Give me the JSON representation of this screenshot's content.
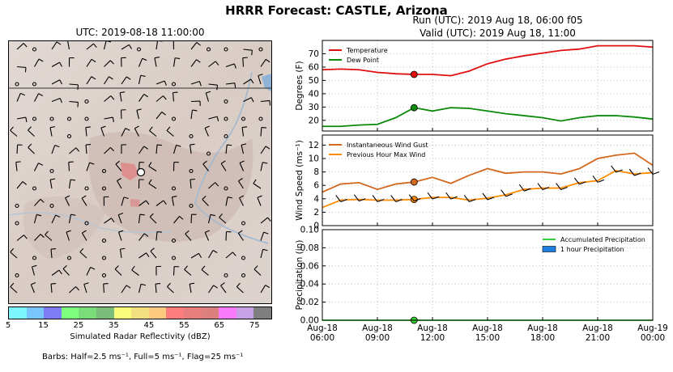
{
  "title": "HRRR Forecast: CASTLE, Arizona",
  "map": {
    "time_label": "UTC: 2019-08-18 11:00:00",
    "colorbar": {
      "label": "Simulated Radar Reflectivity (dBZ)",
      "ticks": [
        "5",
        "15",
        "25",
        "35",
        "45",
        "55",
        "65",
        "75"
      ],
      "colors": [
        "#7ef6ff",
        "#79c6ff",
        "#7e7cf4",
        "#7dfe7d",
        "#79de79",
        "#7bbd7b",
        "#fcfc7c",
        "#f2df80",
        "#fccb7f",
        "#fb7d7e",
        "#e97e7e",
        "#db7f7f",
        "#f97afa",
        "#c8a0e6",
        "#7f7f7f"
      ]
    },
    "barb_note": "Barbs: Half=2.5 ms⁻¹, Full=5 ms⁻¹, Flag=25 ms⁻¹"
  },
  "run_line": "Run (UTC): 2019 Aug 18, 06:00 f05",
  "valid_line": "Valid (UTC): 2019 Aug 18, 11:00",
  "chart_data": [
    {
      "type": "line",
      "ylabel": "Degrees (F)",
      "ylim": [
        12,
        80
      ],
      "yticks": [
        20,
        30,
        40,
        50,
        60,
        70
      ],
      "x_hours": [
        0,
        1,
        2,
        3,
        4,
        5,
        6,
        7,
        8,
        9,
        10,
        11,
        12,
        13,
        14,
        15,
        16,
        17,
        18
      ],
      "series": [
        {
          "name": "Temperature",
          "color": "#e01010",
          "values": [
            58,
            58.5,
            58,
            56,
            55,
            54.5,
            54.5,
            53.5,
            57,
            62.5,
            66,
            68.5,
            70.5,
            72.5,
            73.5,
            76,
            76,
            76,
            75
          ]
        },
        {
          "name": "Dew Point",
          "color": "#0b8a0b",
          "values": [
            15.5,
            15.5,
            16.5,
            17,
            22,
            29.5,
            27,
            29.5,
            29,
            27,
            25,
            23.5,
            22,
            19.5,
            22,
            23.5,
            23.5,
            22.5,
            21
          ]
        }
      ],
      "marker_hour": 5,
      "grid": true,
      "legend": "top-left"
    },
    {
      "type": "line",
      "ylabel": "Wind Speed (ms⁻¹)",
      "ylim": [
        0,
        13.5
      ],
      "yticks": [
        0,
        2,
        4,
        6,
        8,
        10,
        12
      ],
      "x_hours": [
        0,
        1,
        2,
        3,
        4,
        5,
        6,
        7,
        8,
        9,
        10,
        11,
        12,
        13,
        14,
        15,
        16,
        17,
        18
      ],
      "series": [
        {
          "name": "Instantaneous Wind Gust",
          "color": "#d2691e",
          "values": [
            5,
            6.2,
            6.4,
            5.4,
            6.2,
            6.5,
            7.2,
            6.3,
            7.5,
            8.5,
            7.8,
            8,
            8,
            7.7,
            8.5,
            10,
            10.5,
            10.8,
            9
          ]
        },
        {
          "name": "Previous Hour Max Wind",
          "color": "#ff8c00",
          "values": [
            2.7,
            3.8,
            3.9,
            3.8,
            3.8,
            3.9,
            4.2,
            4.2,
            3.8,
            4.1,
            4.6,
            5.4,
            5.6,
            5.6,
            6.4,
            6.7,
            8.2,
            7.7,
            7.9
          ]
        }
      ],
      "marker_hour": 5,
      "grid": true,
      "legend": "top-left"
    },
    {
      "type": "bar",
      "ylabel": "Precipitation (in)",
      "ylim": [
        0,
        0.1
      ],
      "yticks": [
        "0.00",
        "0.02",
        "0.04",
        "0.06",
        "0.08",
        "0.10"
      ],
      "x_hours": [
        0,
        1,
        2,
        3,
        4,
        5,
        6,
        7,
        8,
        9,
        10,
        11,
        12,
        13,
        14,
        15,
        16,
        17,
        18
      ],
      "series": [
        {
          "name": "Accumulated Precipitation",
          "color": "#32cd32",
          "values": [
            0,
            0,
            0,
            0,
            0,
            0,
            0,
            0,
            0,
            0,
            0,
            0,
            0,
            0,
            0,
            0,
            0,
            0,
            0
          ]
        },
        {
          "name": "1 hour Precipitation",
          "color": "#1e7fe0",
          "values": [
            0,
            0,
            0,
            0,
            0,
            0,
            0,
            0,
            0,
            0,
            0,
            0,
            0,
            0,
            0,
            0,
            0,
            0,
            0
          ]
        }
      ],
      "marker_hour": 5,
      "grid": true,
      "legend": "top-right"
    }
  ],
  "x_axis": {
    "ticks": [
      {
        "hour": 0,
        "l1": "Aug-18",
        "l2": "06:00"
      },
      {
        "hour": 3,
        "l1": "Aug-18",
        "l2": "09:00"
      },
      {
        "hour": 6,
        "l1": "Aug-18",
        "l2": "12:00"
      },
      {
        "hour": 9,
        "l1": "Aug-18",
        "l2": "15:00"
      },
      {
        "hour": 12,
        "l1": "Aug-18",
        "l2": "18:00"
      },
      {
        "hour": 15,
        "l1": "Aug-18",
        "l2": "21:00"
      },
      {
        "hour": 18,
        "l1": "Aug-19",
        "l2": "00:00"
      }
    ]
  }
}
